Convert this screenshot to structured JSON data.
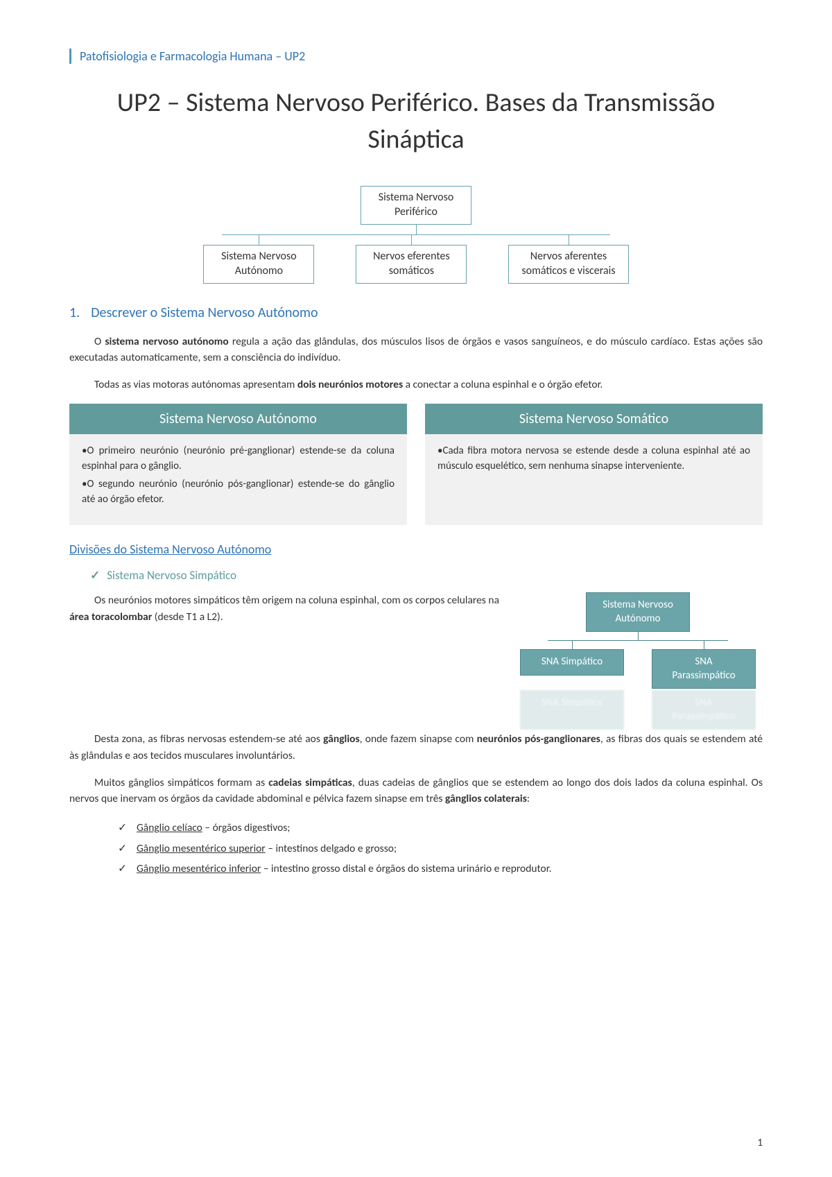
{
  "colors": {
    "accent_blue": "#2e74b5",
    "teal": "#629b9c",
    "teal_border": "#6ba5b0",
    "card_bg": "#f1f1f1",
    "text": "#333333",
    "bg": "#ffffff"
  },
  "header": "Patofisiologia e Farmacologia Humana – UP2",
  "title": "UP2 – Sistema Nervoso Periférico. Bases da Transmissão Sináptica",
  "chart1": {
    "type": "tree",
    "root": "Sistema Nervoso\nPeriférico",
    "children": [
      "Sistema Nervoso\nAutónomo",
      "Nervos eferentes\nsomáticos",
      "Nervos aferentes\nsomáticos e viscerais"
    ],
    "box_border": "#6ba5b0",
    "box_bg": "#ffffff",
    "fontsize": 16
  },
  "section1": {
    "num": "1.",
    "heading": "Descrever o Sistema Nervoso Autónomo",
    "p1_pre": "O ",
    "p1_bold": "sistema nervoso autónomo",
    "p1_post": " regula a ação das glândulas, dos músculos lisos de órgãos e vasos sanguíneos, e do músculo cardíaco. Estas ações são executadas automaticamente, sem a consciência do indivíduo.",
    "p2_pre": "Todas as vias motoras autónomas apresentam ",
    "p2_bold": "dois neurónios motores",
    "p2_post": " a conectar a coluna espinhal e o órgão efetor."
  },
  "cards": {
    "left": {
      "title": "Sistema Nervoso Autónomo",
      "bullets": [
        "O primeiro neurónio (neurónio pré-ganglionar) estende-se da coluna espinhal para o gânglio.",
        "O segundo neurónio (neurónio pós-ganglionar) estende-se do gânglio até ao órgão efetor."
      ]
    },
    "right": {
      "title": "Sistema Nervoso Somático",
      "bullets": [
        "Cada fibra motora nervosa se estende desde a coluna espinhal até ao músculo esquelético, sem nenhuma sinapse interveniente."
      ]
    }
  },
  "divisions": {
    "heading": "Divisões do Sistema Nervoso Autónomo",
    "item1": "Sistema Nervoso Simpático"
  },
  "simp": {
    "p1_pre": "Os neurónios motores simpáticos têm origem na coluna espinhal, com os corpos celulares na ",
    "p1_bold": "área toracolombar",
    "p1_post": " (desde T1 a L2).",
    "p2_a": "Desta zona, as fibras nervosas estendem-se até aos ",
    "p2_b1": "gânglios",
    "p2_b": ", onde fazem sinapse com ",
    "p2_b2": "neurónios pós-ganglionares",
    "p2_c": ", as fibras dos quais se estendem até às glândulas e aos tecidos musculares involuntários.",
    "p3_a": "Muitos gânglios simpáticos formam as ",
    "p3_b1": "cadeias simpáticas",
    "p3_b": ", duas cadeias de gânglios que se estendem ao longo dos dois lados da coluna espinhal. Os nervos que inervam os órgãos da cavidade abdominal e pélvica fazem sinapse em três ",
    "p3_b2": "gânglios colaterais",
    "p3_c": ":"
  },
  "chart2": {
    "type": "tree",
    "root": "Sistema Nervoso\nAutónomo",
    "children": [
      "SNA Simpático",
      "SNA\nParassimpático"
    ],
    "box_bg": "#6ba5a9",
    "box_border": "#4b8589",
    "text_color": "#ffffff",
    "fontsize": 15
  },
  "ganglios": [
    {
      "name": "Gânglio celíaco",
      "desc": " – órgãos digestivos;"
    },
    {
      "name": "Gânglio mesentérico superior",
      "desc": " – intestinos delgado e grosso;"
    },
    {
      "name": "Gânglio mesentérico inferior",
      "desc": " – intestino grosso distal e órgãos do sistema urinário e reprodutor."
    }
  ],
  "page_number": "1"
}
